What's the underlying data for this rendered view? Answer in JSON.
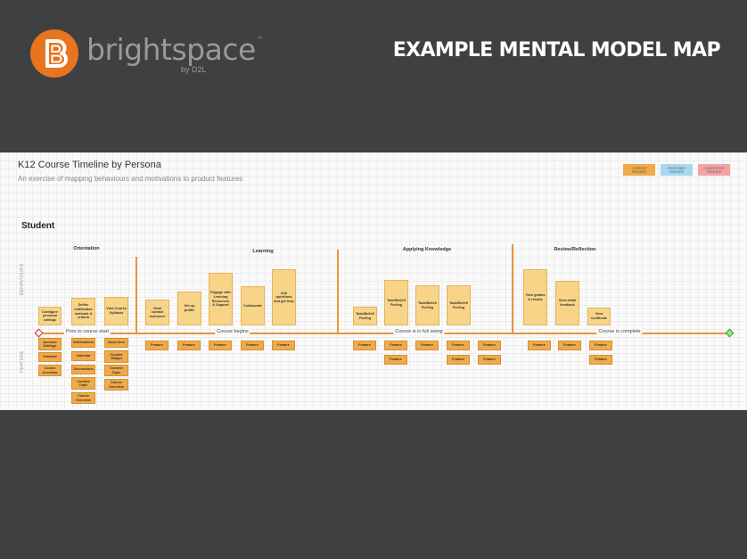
{
  "header": {
    "logo_text": "brightspace",
    "logo_tm": "™",
    "logo_sub": "by D2L",
    "slide_title": "EXAMPLE MENTAL MODEL MAP",
    "brand_color": "#e8741f"
  },
  "panel": {
    "title": "K12 Course Timeline by Persona",
    "subtitle": "An exercise of mapping behaviours and motivations to product features",
    "legend": [
      {
        "label": "CURRENT FEATURE",
        "color": "#f1aa4a"
      },
      {
        "label": "PROPOSED FEATURE",
        "color": "#a8d8f0"
      },
      {
        "label": "COMPETITOR FEATURE",
        "color": "#f4a3a3"
      }
    ],
    "persona": "Student",
    "row_labels": {
      "behaviours": "BEHAVIOURS",
      "feature": "FEATURE"
    },
    "phases": [
      "Orientation",
      "Learning",
      "Applying Knowledge",
      "Review/Reflection"
    ],
    "milestones": [
      "Prior to course start",
      "Course begins",
      "Course is in full swing",
      "Course is complete"
    ],
    "behaviours": [
      "Configure personal settings",
      "Define notification methods & criteria",
      "View Course Syllabus",
      "View/ contact instructor",
      "Set up profile",
      "Engage with Learning Resources & Support",
      "Collaborate",
      "Ask questions and get help",
      "Task/Belief/ Feeling",
      "Task/Belief/ Feeling",
      "Task/Belief/ Feeling",
      "Task/Belief/ Feeling",
      "View grades & results",
      "View detail feedback",
      "View certificate"
    ],
    "feature_cols": [
      [
        "Account Settings",
        "Calendar",
        "Course Overview"
      ],
      [
        "Notifications",
        "Calendar",
        "Discussions",
        "Content Topic",
        "Course Overview"
      ],
      [
        "News Item",
        "Custom Widget",
        "Content Topic",
        "Course Overview"
      ],
      [
        "Feature"
      ],
      [
        "Feature"
      ],
      [
        "Feature"
      ],
      [
        "Feature"
      ],
      [
        "Feature"
      ],
      [
        "Feature"
      ],
      [
        "Feature",
        "Feature"
      ],
      [
        "Feature"
      ],
      [
        "Feature",
        "Feature"
      ],
      [
        "Feature",
        "Feature"
      ],
      [
        "Feature"
      ],
      [
        "Feature"
      ],
      [
        "Feature",
        "Feature"
      ]
    ]
  }
}
